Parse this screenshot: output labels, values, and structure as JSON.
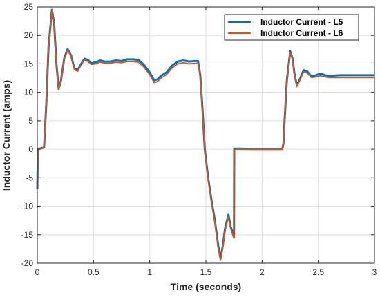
{
  "chart_data": {
    "type": "line",
    "title": "",
    "xlabel": "Time (seconds)",
    "ylabel": "Inductor Current (amps)",
    "xlim": [
      0,
      3
    ],
    "ylim": [
      -20,
      25
    ],
    "xticks": [
      0,
      0.5,
      1,
      1.5,
      2,
      2.5,
      3
    ],
    "xtick_labels": [
      "0",
      "0.5",
      "1",
      "1.5",
      "2",
      "2.5",
      "3"
    ],
    "yticks": [
      -20,
      -15,
      -10,
      -5,
      0,
      5,
      10,
      15,
      20,
      25
    ],
    "ytick_labels": [
      "-20",
      "-15",
      "-10",
      "-5",
      "0",
      "5",
      "10",
      "15",
      "20",
      "25"
    ],
    "grid": true,
    "legend_position": "top-right",
    "series": [
      {
        "name": "Inductor Current - L5",
        "color": "#0072BD",
        "points": [
          [
            0,
            -7
          ],
          [
            0.005,
            0
          ],
          [
            0.02,
            0.1
          ],
          [
            0.06,
            0.3
          ],
          [
            0.08,
            8
          ],
          [
            0.1,
            18
          ],
          [
            0.13,
            24.5
          ],
          [
            0.15,
            22
          ],
          [
            0.17,
            15
          ],
          [
            0.19,
            10.6
          ],
          [
            0.21,
            12
          ],
          [
            0.24,
            16
          ],
          [
            0.27,
            17.6
          ],
          [
            0.3,
            16.5
          ],
          [
            0.33,
            14.2
          ],
          [
            0.36,
            13.9
          ],
          [
            0.39,
            15
          ],
          [
            0.42,
            15.9
          ],
          [
            0.45,
            15.7
          ],
          [
            0.48,
            15.1
          ],
          [
            0.52,
            15.3
          ],
          [
            0.56,
            15.6
          ],
          [
            0.6,
            15.4
          ],
          [
            0.65,
            15.4
          ],
          [
            0.7,
            15.6
          ],
          [
            0.75,
            15.5
          ],
          [
            0.8,
            15.8
          ],
          [
            0.85,
            15.8
          ],
          [
            0.9,
            15.7
          ],
          [
            0.95,
            14.8
          ],
          [
            1.0,
            13.5
          ],
          [
            1.04,
            12.1
          ],
          [
            1.07,
            12.3
          ],
          [
            1.1,
            12.9
          ],
          [
            1.15,
            13.5
          ],
          [
            1.2,
            14.7
          ],
          [
            1.25,
            15.4
          ],
          [
            1.3,
            15.6
          ],
          [
            1.35,
            15.4
          ],
          [
            1.4,
            15.5
          ],
          [
            1.43,
            15.5
          ],
          [
            1.45,
            13
          ],
          [
            1.47,
            7
          ],
          [
            1.49,
            0
          ],
          [
            1.52,
            -5
          ],
          [
            1.55,
            -9
          ],
          [
            1.58,
            -12.5
          ],
          [
            1.61,
            -17
          ],
          [
            1.63,
            -19.2
          ],
          [
            1.65,
            -17
          ],
          [
            1.67,
            -14
          ],
          [
            1.7,
            -11.5
          ],
          [
            1.72,
            -13.5
          ],
          [
            1.75,
            -15.5
          ],
          [
            1.752,
            0.1
          ],
          [
            1.8,
            0.1
          ],
          [
            1.9,
            0.05
          ],
          [
            2.0,
            0.05
          ],
          [
            2.1,
            0.05
          ],
          [
            2.18,
            0.05
          ],
          [
            2.19,
            1
          ],
          [
            2.2,
            5
          ],
          [
            2.22,
            12
          ],
          [
            2.25,
            17.2
          ],
          [
            2.27,
            16
          ],
          [
            2.29,
            13
          ],
          [
            2.31,
            11.2
          ],
          [
            2.34,
            12.5
          ],
          [
            2.37,
            13.9
          ],
          [
            2.4,
            13.7
          ],
          [
            2.44,
            12.8
          ],
          [
            2.48,
            13
          ],
          [
            2.52,
            13.3
          ],
          [
            2.56,
            13
          ],
          [
            2.6,
            12.9
          ],
          [
            2.7,
            13
          ],
          [
            2.8,
            13
          ],
          [
            2.9,
            13
          ],
          [
            3.0,
            13
          ]
        ]
      },
      {
        "name": "Inductor Current - L6",
        "color": "#D95319",
        "points": [
          [
            0,
            -7
          ],
          [
            0.005,
            0
          ],
          [
            0.02,
            0.1
          ],
          [
            0.06,
            0.3
          ],
          [
            0.08,
            8
          ],
          [
            0.1,
            18
          ],
          [
            0.13,
            24.3
          ],
          [
            0.15,
            21.8
          ],
          [
            0.17,
            14.8
          ],
          [
            0.19,
            10.5
          ],
          [
            0.21,
            11.9
          ],
          [
            0.24,
            15.8
          ],
          [
            0.27,
            17.4
          ],
          [
            0.3,
            16.3
          ],
          [
            0.33,
            14
          ],
          [
            0.36,
            13.7
          ],
          [
            0.39,
            14.8
          ],
          [
            0.42,
            15.7
          ],
          [
            0.45,
            15.4
          ],
          [
            0.48,
            14.9
          ],
          [
            0.52,
            15
          ],
          [
            0.56,
            15.3
          ],
          [
            0.6,
            15.1
          ],
          [
            0.65,
            15.1
          ],
          [
            0.7,
            15.3
          ],
          [
            0.75,
            15.2
          ],
          [
            0.8,
            15.4
          ],
          [
            0.85,
            15.4
          ],
          [
            0.9,
            15.3
          ],
          [
            0.95,
            14.4
          ],
          [
            1.0,
            13.1
          ],
          [
            1.04,
            11.7
          ],
          [
            1.07,
            11.9
          ],
          [
            1.1,
            12.5
          ],
          [
            1.15,
            13.1
          ],
          [
            1.2,
            14.3
          ],
          [
            1.25,
            15
          ],
          [
            1.3,
            15.2
          ],
          [
            1.35,
            15
          ],
          [
            1.4,
            15.1
          ],
          [
            1.43,
            15.1
          ],
          [
            1.45,
            12.6
          ],
          [
            1.47,
            6.6
          ],
          [
            1.49,
            -0.4
          ],
          [
            1.52,
            -5.4
          ],
          [
            1.55,
            -9.4
          ],
          [
            1.58,
            -12.9
          ],
          [
            1.61,
            -17.4
          ],
          [
            1.63,
            -19.5
          ],
          [
            1.65,
            -17.4
          ],
          [
            1.67,
            -14.4
          ],
          [
            1.7,
            -11.9
          ],
          [
            1.72,
            -13.9
          ],
          [
            1.75,
            -15.6
          ],
          [
            1.752,
            0
          ],
          [
            1.8,
            0
          ],
          [
            1.9,
            0
          ],
          [
            2.0,
            0
          ],
          [
            2.1,
            0
          ],
          [
            2.18,
            0
          ],
          [
            2.19,
            1
          ],
          [
            2.2,
            5
          ],
          [
            2.22,
            12
          ],
          [
            2.25,
            17
          ],
          [
            2.27,
            15.8
          ],
          [
            2.29,
            12.8
          ],
          [
            2.31,
            11
          ],
          [
            2.34,
            12.3
          ],
          [
            2.37,
            13.6
          ],
          [
            2.4,
            13.4
          ],
          [
            2.44,
            12.6
          ],
          [
            2.48,
            12.7
          ],
          [
            2.52,
            12.9
          ],
          [
            2.56,
            12.7
          ],
          [
            2.6,
            12.6
          ],
          [
            2.7,
            12.6
          ],
          [
            2.8,
            12.6
          ],
          [
            2.9,
            12.6
          ],
          [
            3.0,
            12.6
          ]
        ]
      }
    ]
  }
}
